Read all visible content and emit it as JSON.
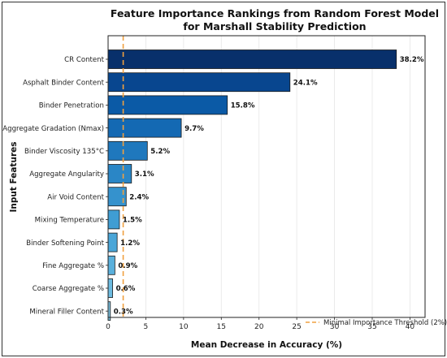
{
  "chart_data": {
    "type": "bar",
    "orientation": "horizontal",
    "title": "Feature Importance Rankings from Random Forest Model",
    "subtitle": "for Marshall Stability Prediction",
    "xlabel": "Mean Decrease in Accuracy (%)",
    "ylabel": "Input Features",
    "xlim": [
      0,
      42
    ],
    "xticks": [
      0,
      5,
      10,
      15,
      20,
      25,
      30,
      35,
      40
    ],
    "grid": true,
    "categories": [
      "CR Content",
      "Asphalt Binder Content",
      "Binder Penetration",
      "Aggregate Gradation (Nmax)",
      "Binder Viscosity 135°C",
      "Aggregate Angularity",
      "Air Void Content",
      "Mixing Temperature",
      "Binder Softening Point",
      "Fine Aggregate %",
      "Coarse Aggregate %",
      "Mineral Filler Content"
    ],
    "values": [
      38.2,
      24.1,
      15.8,
      9.7,
      5.2,
      3.1,
      2.4,
      1.5,
      1.2,
      0.9,
      0.6,
      0.3
    ],
    "value_labels": [
      "38.2%",
      "24.1%",
      "15.8%",
      "9.7%",
      "5.2%",
      "3.1%",
      "2.4%",
      "1.5%",
      "1.2%",
      "0.9%",
      "0.6%",
      "0.3%"
    ],
    "bar_colors": [
      "#08306b",
      "#08468f",
      "#0b5aa6",
      "#1469b3",
      "#1f78bd",
      "#2a86c6",
      "#3592cd",
      "#3f9dd3",
      "#4aa6d8",
      "#5ab0dc",
      "#6cbbe0",
      "#80c6e5"
    ],
    "threshold": {
      "value": 2,
      "label": "Minimal Importance Threshold (2%)",
      "color": "#f0a040"
    },
    "legend_position": "bottom-right"
  }
}
